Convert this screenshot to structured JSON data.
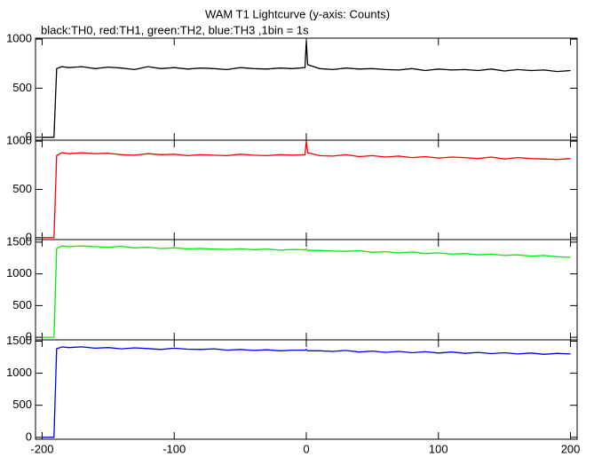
{
  "header": {
    "title": "WAM T1 Lightcurve (y-axis: Counts)",
    "subtitle": "black:TH0, red:TH1, green:TH2, blue:TH3 ,1bin = 1s"
  },
  "chart_data": [
    {
      "type": "line",
      "xlim": [
        -205,
        205
      ],
      "xticks": [
        -200,
        -100,
        0,
        100,
        200
      ],
      "ylim": [
        -30,
        1010
      ],
      "yticks": [
        0,
        500,
        1000
      ],
      "x": [
        -200,
        -191,
        -189,
        -185,
        -180,
        -170,
        -160,
        -150,
        -140,
        -130,
        -120,
        -110,
        -100,
        -90,
        -80,
        -70,
        -60,
        -50,
        -40,
        -30,
        -20,
        -10,
        -1,
        0,
        1,
        10,
        20,
        30,
        40,
        50,
        60,
        70,
        80,
        90,
        100,
        110,
        120,
        130,
        140,
        150,
        160,
        170,
        180,
        190,
        200
      ],
      "series": [
        {
          "color": "#000000",
          "values": [
            0,
            0,
            700,
            720,
            710,
            720,
            700,
            715,
            705,
            690,
            720,
            700,
            710,
            695,
            705,
            700,
            690,
            710,
            700,
            695,
            705,
            700,
            710,
            980,
            740,
            700,
            690,
            705,
            695,
            700,
            690,
            685,
            700,
            680,
            695,
            685,
            690,
            680,
            695,
            675,
            690,
            680,
            685,
            670,
            680
          ]
        }
      ]
    },
    {
      "type": "line",
      "xlim": [
        -205,
        205
      ],
      "xticks": [
        -200,
        -100,
        0,
        100,
        200
      ],
      "ylim": [
        -20,
        1010
      ],
      "yticks": [
        0,
        500,
        1000
      ],
      "x": [
        -200,
        -191,
        -189,
        -185,
        -180,
        -170,
        -160,
        -150,
        -140,
        -130,
        -120,
        -110,
        -100,
        -90,
        -80,
        -70,
        -60,
        -50,
        -40,
        -30,
        -20,
        -10,
        -1,
        0,
        1,
        10,
        20,
        30,
        40,
        50,
        60,
        70,
        80,
        90,
        100,
        110,
        120,
        130,
        140,
        150,
        160,
        170,
        180,
        190,
        200
      ],
      "series": [
        {
          "color": "#ff0000",
          "values": [
            0,
            0,
            850,
            880,
            870,
            880,
            870,
            875,
            860,
            855,
            870,
            860,
            865,
            850,
            860,
            855,
            850,
            865,
            855,
            850,
            860,
            855,
            860,
            1000,
            880,
            850,
            845,
            860,
            840,
            850,
            835,
            845,
            830,
            840,
            825,
            835,
            830,
            820,
            835,
            815,
            830,
            820,
            815,
            810,
            820
          ]
        }
      ]
    },
    {
      "type": "line",
      "xlim": [
        -205,
        205
      ],
      "xticks": [
        -200,
        -100,
        0,
        100,
        200
      ],
      "ylim": [
        -40,
        1540
      ],
      "yticks": [
        0,
        500,
        1000,
        1500
      ],
      "x": [
        -200,
        -191,
        -189,
        -185,
        -180,
        -170,
        -160,
        -150,
        -140,
        -130,
        -120,
        -110,
        -100,
        -90,
        -80,
        -70,
        -60,
        -50,
        -40,
        -30,
        -20,
        -10,
        -1,
        0,
        1,
        10,
        20,
        30,
        40,
        50,
        60,
        70,
        80,
        90,
        100,
        110,
        120,
        130,
        140,
        150,
        160,
        170,
        180,
        190,
        200
      ],
      "series": [
        {
          "color": "#00ee00",
          "values": [
            0,
            0,
            1400,
            1440,
            1430,
            1440,
            1430,
            1420,
            1435,
            1410,
            1420,
            1400,
            1410,
            1395,
            1400,
            1390,
            1385,
            1395,
            1380,
            1390,
            1375,
            1385,
            1380,
            1390,
            1370,
            1370,
            1360,
            1355,
            1365,
            1340,
            1350,
            1330,
            1345,
            1320,
            1330,
            1310,
            1320,
            1300,
            1310,
            1290,
            1300,
            1280,
            1290,
            1270,
            1260
          ]
        }
      ]
    },
    {
      "type": "line",
      "xlim": [
        -205,
        205
      ],
      "xticks": [
        -200,
        -100,
        0,
        100,
        200
      ],
      "ylim": [
        -30,
        1520
      ],
      "yticks": [
        0,
        500,
        1000,
        1500
      ],
      "x": [
        -200,
        -191,
        -189,
        -185,
        -180,
        -170,
        -160,
        -150,
        -140,
        -130,
        -120,
        -110,
        -100,
        -90,
        -80,
        -70,
        -60,
        -50,
        -40,
        -30,
        -20,
        -10,
        -1,
        0,
        1,
        10,
        20,
        30,
        40,
        50,
        60,
        70,
        80,
        90,
        100,
        110,
        120,
        130,
        140,
        150,
        160,
        170,
        180,
        190,
        200
      ],
      "series": [
        {
          "color": "#0000ff",
          "values": [
            0,
            0,
            1380,
            1410,
            1400,
            1410,
            1390,
            1400,
            1380,
            1395,
            1385,
            1370,
            1390,
            1375,
            1370,
            1380,
            1360,
            1370,
            1355,
            1365,
            1350,
            1360,
            1360,
            1370,
            1350,
            1350,
            1340,
            1355,
            1330,
            1345,
            1325,
            1340,
            1320,
            1335,
            1315,
            1330,
            1310,
            1325,
            1305,
            1320,
            1300,
            1315,
            1295,
            1310,
            1300
          ]
        }
      ]
    }
  ]
}
